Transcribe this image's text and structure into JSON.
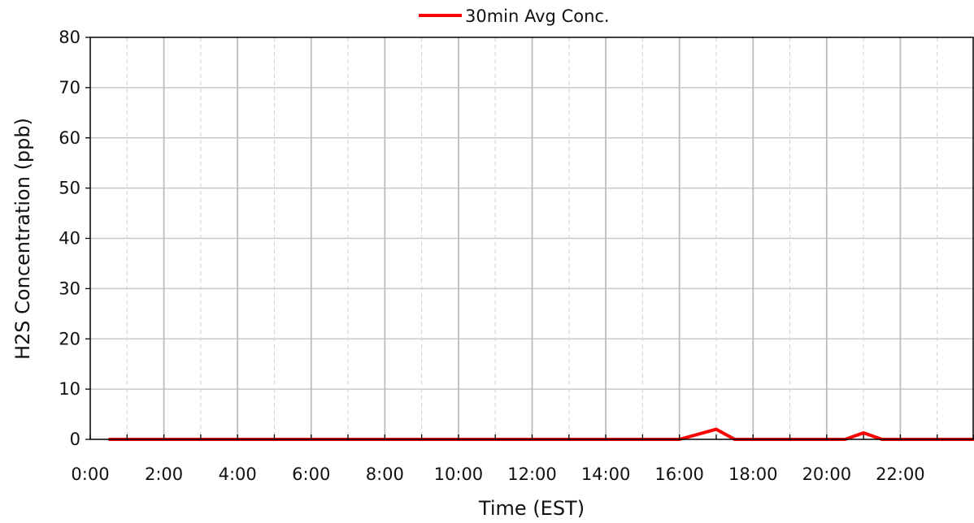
{
  "chart_data": {
    "type": "line",
    "title": "",
    "xlabel": "Time (EST)",
    "ylabel": "H2S Concentration (ppb)",
    "xlim": [
      "0:00",
      "24:00"
    ],
    "ylim": [
      0,
      80
    ],
    "y_ticks": [
      0,
      10,
      20,
      30,
      40,
      50,
      60,
      70,
      80
    ],
    "x_tick_labels": [
      "0:00",
      "2:00",
      "4:00",
      "6:00",
      "8:00",
      "10:00",
      "12:00",
      "14:00",
      "16:00",
      "18:00",
      "20:00",
      "22:00"
    ],
    "grid": true,
    "legend_position": "top-center",
    "series": [
      {
        "name": "30min Avg Conc.",
        "color": "#ff0000",
        "x": [
          "0:30",
          "1:00",
          "1:30",
          "2:00",
          "2:30",
          "3:00",
          "3:30",
          "4:00",
          "4:30",
          "5:00",
          "5:30",
          "6:00",
          "6:30",
          "7:00",
          "7:30",
          "8:00",
          "8:30",
          "9:00",
          "9:30",
          "10:00",
          "10:30",
          "11:00",
          "11:30",
          "12:00",
          "12:30",
          "13:00",
          "13:30",
          "14:00",
          "14:30",
          "15:00",
          "15:30",
          "16:00",
          "16:30",
          "17:00",
          "17:30",
          "18:00",
          "18:30",
          "19:00",
          "19:30",
          "20:00",
          "20:30",
          "21:00",
          "21:30",
          "22:00",
          "22:30",
          "23:00",
          "23:30",
          "24:00"
        ],
        "y": [
          0,
          0,
          0,
          0,
          0,
          0,
          0,
          0,
          0,
          0,
          0,
          0,
          0,
          0,
          0,
          0,
          0,
          0,
          0,
          0,
          0,
          0,
          0,
          0,
          0,
          0,
          0,
          0,
          0,
          0,
          0,
          0,
          1,
          2,
          0,
          0,
          0,
          0,
          0,
          0,
          0,
          1.3,
          0,
          0,
          0,
          0,
          0,
          0
        ]
      }
    ]
  }
}
